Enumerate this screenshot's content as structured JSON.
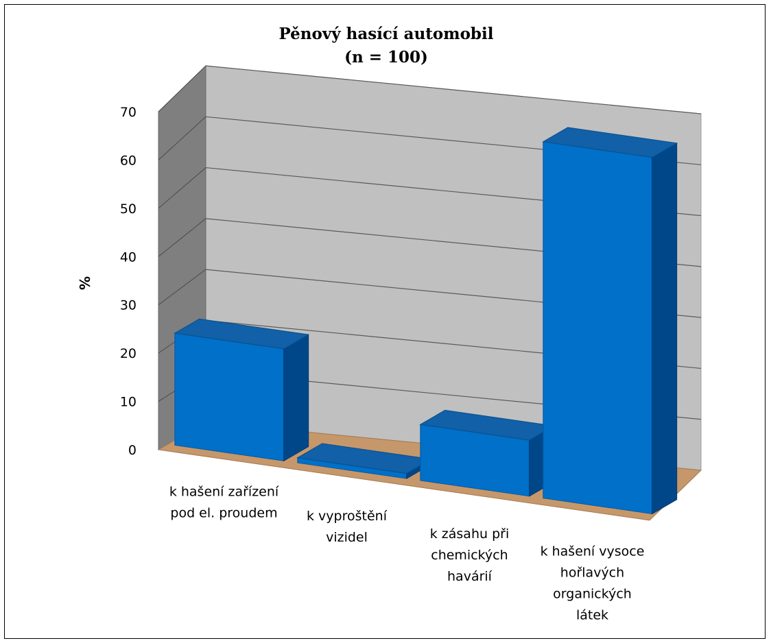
{
  "chart_data": {
    "type": "bar",
    "title_lines": [
      "Pěnový hasící automobil",
      "(n = 100)"
    ],
    "ylabel": "%",
    "xlabel": "",
    "ylim": [
      0,
      70
    ],
    "y_ticks": [
      "0",
      "10",
      "20",
      "30",
      "40",
      "50",
      "60",
      "70"
    ],
    "categories": [
      [
        "k hašení zařízení",
        "pod el. proudem"
      ],
      [
        "k vyproštění",
        "vizidel"
      ],
      [
        "k zásahu při",
        "chemických",
        "havárií"
      ],
      [
        "k hašení vysoce",
        "hořlavých",
        "organických",
        "látek"
      ]
    ],
    "values": [
      22,
      1,
      11,
      70
    ],
    "style": "3d-column",
    "grid": true,
    "legend": "none",
    "colors": {
      "bar_front": "#0070C8",
      "bar_top": "#1160A8",
      "bar_side": "#00478A",
      "back_wall": "#C0C0C0",
      "side_wall": "#7F7F7F",
      "floor": "#C6976A"
    }
  }
}
